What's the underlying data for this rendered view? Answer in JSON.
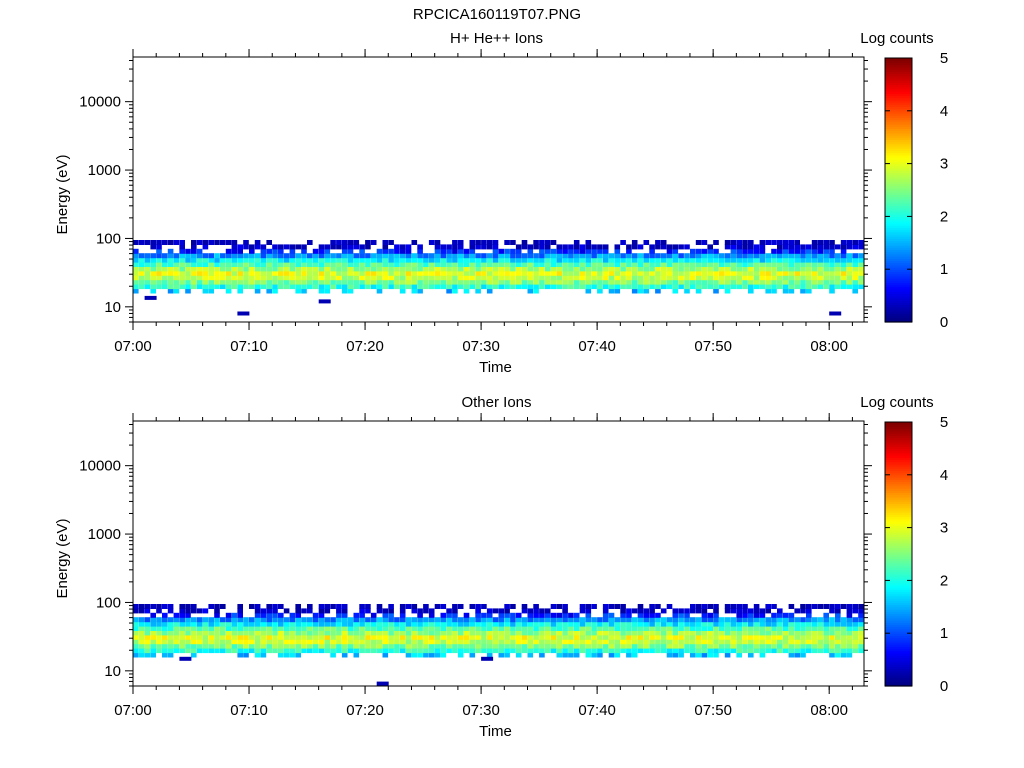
{
  "figure_title": "RPCICA160119T07.PNG",
  "chart_data": [
    {
      "type": "heatmap",
      "title": "H+ He++ Ions",
      "xlabel": "Time",
      "ylabel": "Energy (eV)",
      "x_ticks": [
        "07:00",
        "07:10",
        "07:20",
        "07:30",
        "07:40",
        "07:50",
        "08:00"
      ],
      "x_range": [
        "07:00",
        "08:03"
      ],
      "y_ticks": [
        "10",
        "100",
        "1000",
        "10000"
      ],
      "y_range": [
        6,
        45000
      ],
      "y_scale": "log",
      "colorbar": {
        "label": "Log counts",
        "min": 0,
        "max": 5,
        "ticks": [
          "0",
          "1",
          "2",
          "3",
          "4",
          "5"
        ]
      },
      "energy_band_ev": [
        16,
        95
      ],
      "peak_energy_ev": 30,
      "typical_peak_log_counts": 3.0,
      "low_count_outliers": [
        {
          "time": "07:01",
          "energy_ev": 13.5
        },
        {
          "time": "07:09",
          "energy_ev": 8
        },
        {
          "time": "07:16",
          "energy_ev": 12
        },
        {
          "time": "08:00",
          "energy_ev": 8
        }
      ]
    },
    {
      "type": "heatmap",
      "title": "Other Ions",
      "xlabel": "Time",
      "ylabel": "Energy (eV)",
      "x_ticks": [
        "07:00",
        "07:10",
        "07:20",
        "07:30",
        "07:40",
        "07:50",
        "08:00"
      ],
      "x_range": [
        "07:00",
        "08:03"
      ],
      "y_ticks": [
        "10",
        "100",
        "1000",
        "10000"
      ],
      "y_range": [
        6,
        45000
      ],
      "y_scale": "log",
      "colorbar": {
        "label": "Log counts",
        "min": 0,
        "max": 5,
        "ticks": [
          "0",
          "1",
          "2",
          "3",
          "4",
          "5"
        ]
      },
      "energy_band_ev": [
        16,
        95
      ],
      "peak_energy_ev": 30,
      "typical_peak_log_counts": 3.0,
      "low_count_outliers": [
        {
          "time": "07:04",
          "energy_ev": 15
        },
        {
          "time": "07:21",
          "energy_ev": 6.5
        },
        {
          "time": "07:30",
          "energy_ev": 15
        }
      ]
    }
  ]
}
